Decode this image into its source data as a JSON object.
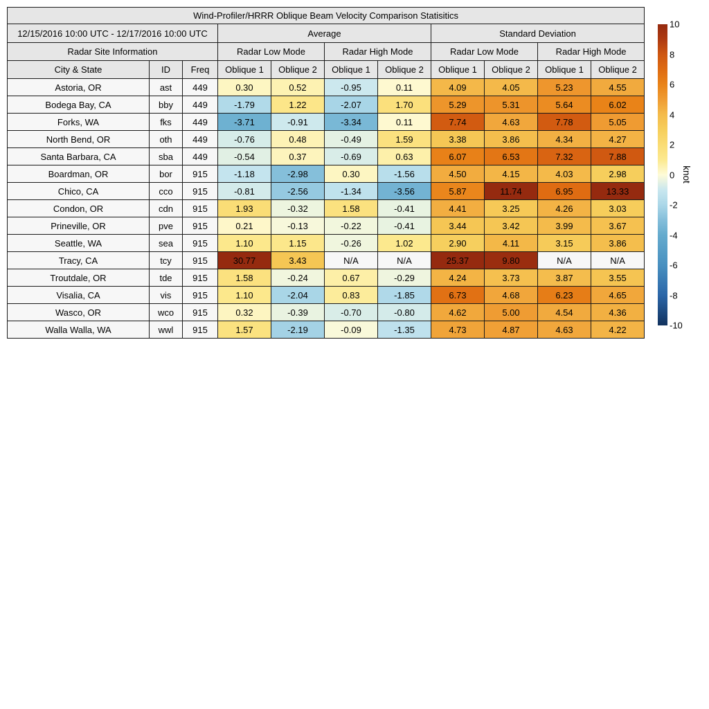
{
  "chart_data": {
    "type": "table",
    "title": "Wind-Profiler/HRRR Oblique Beam Velocity Comparison Statisitics",
    "date_range": "12/15/2016 10:00 UTC - 12/17/2016 10:00 UTC",
    "group_headers": [
      "Average",
      "Standard Deviation"
    ],
    "section_header": "Radar Site Information",
    "mode_headers": [
      "Radar Low Mode",
      "Radar High Mode",
      "Radar Low Mode",
      "Radar High Mode"
    ],
    "column_headers": [
      "City & State",
      "ID",
      "Freq",
      "Oblique 1",
      "Oblique 2",
      "Oblique 1",
      "Oblique 2",
      "Oblique 1",
      "Oblique 2",
      "Oblique 1",
      "Oblique 2"
    ],
    "rows": [
      {
        "city": "Astoria, OR",
        "id": "ast",
        "freq": "449",
        "values": [
          "0.30",
          "0.52",
          "-0.95",
          "0.11",
          "4.09",
          "4.05",
          "5.23",
          "4.55"
        ]
      },
      {
        "city": "Bodega Bay, CA",
        "id": "bby",
        "freq": "449",
        "values": [
          "-1.79",
          "1.22",
          "-2.07",
          "1.70",
          "5.29",
          "5.31",
          "5.64",
          "6.02"
        ]
      },
      {
        "city": "Forks, WA",
        "id": "fks",
        "freq": "449",
        "values": [
          "-3.71",
          "-0.91",
          "-3.34",
          "0.11",
          "7.74",
          "4.63",
          "7.78",
          "5.05"
        ]
      },
      {
        "city": "North Bend, OR",
        "id": "oth",
        "freq": "449",
        "values": [
          "-0.76",
          "0.48",
          "-0.49",
          "1.59",
          "3.38",
          "3.86",
          "4.34",
          "4.27"
        ]
      },
      {
        "city": "Santa Barbara, CA",
        "id": "sba",
        "freq": "449",
        "values": [
          "-0.54",
          "0.37",
          "-0.69",
          "0.63",
          "6.07",
          "6.53",
          "7.32",
          "7.88"
        ]
      },
      {
        "city": "Boardman, OR",
        "id": "bor",
        "freq": "915",
        "values": [
          "-1.18",
          "-2.98",
          "0.30",
          "-1.56",
          "4.50",
          "4.15",
          "4.03",
          "2.98"
        ]
      },
      {
        "city": "Chico, CA",
        "id": "cco",
        "freq": "915",
        "values": [
          "-0.81",
          "-2.56",
          "-1.34",
          "-3.56",
          "5.87",
          "11.74",
          "6.95",
          "13.33"
        ]
      },
      {
        "city": "Condon, OR",
        "id": "cdn",
        "freq": "915",
        "values": [
          "1.93",
          "-0.32",
          "1.58",
          "-0.41",
          "4.41",
          "3.25",
          "4.26",
          "3.03"
        ]
      },
      {
        "city": "Prineville, OR",
        "id": "pve",
        "freq": "915",
        "values": [
          "0.21",
          "-0.13",
          "-0.22",
          "-0.41",
          "3.44",
          "3.42",
          "3.99",
          "3.67"
        ]
      },
      {
        "city": "Seattle, WA",
        "id": "sea",
        "freq": "915",
        "values": [
          "1.10",
          "1.15",
          "-0.26",
          "1.02",
          "2.90",
          "4.11",
          "3.15",
          "3.86"
        ]
      },
      {
        "city": "Tracy, CA",
        "id": "tcy",
        "freq": "915",
        "values": [
          "30.77",
          "3.43",
          "N/A",
          "N/A",
          "25.37",
          "9.80",
          "N/A",
          "N/A"
        ]
      },
      {
        "city": "Troutdale, OR",
        "id": "tde",
        "freq": "915",
        "values": [
          "1.58",
          "-0.24",
          "0.67",
          "-0.29",
          "4.24",
          "3.73",
          "3.87",
          "3.55"
        ]
      },
      {
        "city": "Visalia, CA",
        "id": "vis",
        "freq": "915",
        "values": [
          "1.10",
          "-2.04",
          "0.83",
          "-1.85",
          "6.73",
          "4.68",
          "6.23",
          "4.65"
        ]
      },
      {
        "city": "Wasco, OR",
        "id": "wco",
        "freq": "915",
        "values": [
          "0.32",
          "-0.39",
          "-0.70",
          "-0.80",
          "4.62",
          "5.00",
          "4.54",
          "4.36"
        ]
      },
      {
        "city": "Walla Walla, WA",
        "id": "wwl",
        "freq": "915",
        "values": [
          "1.57",
          "-2.19",
          "-0.09",
          "-1.35",
          "4.73",
          "4.87",
          "4.63",
          "4.22"
        ]
      }
    ],
    "colorbar": {
      "label": "knot",
      "min": -10,
      "max": 10,
      "tick_labels": [
        "10",
        "8",
        "6",
        "4",
        "2",
        "0",
        "-2",
        "-4",
        "-6",
        "-8",
        "-10"
      ]
    },
    "colors": {
      "header_bg": "#E6E6E6",
      "label_bg": "#F7F7F7",
      "na_bg": "#F7F7F7",
      "border": "#1a1a1a",
      "stops": [
        {
          "v": -10,
          "c": "#12325E"
        },
        {
          "v": -8,
          "c": "#2B66A8"
        },
        {
          "v": -6,
          "c": "#4890C0"
        },
        {
          "v": -4,
          "c": "#65ABCE"
        },
        {
          "v": -3,
          "c": "#84BEDA"
        },
        {
          "v": -2,
          "c": "#ABD7E8"
        },
        {
          "v": -1,
          "c": "#C9E7EF"
        },
        {
          "v": 0,
          "c": "#FEFBD8"
        },
        {
          "v": 1,
          "c": "#FCE98F"
        },
        {
          "v": 2,
          "c": "#FADC74"
        },
        {
          "v": 3,
          "c": "#F6CE5B"
        },
        {
          "v": 4,
          "c": "#F4BB4B"
        },
        {
          "v": 5,
          "c": "#EF9C33"
        },
        {
          "v": 6,
          "c": "#E98318"
        },
        {
          "v": 7,
          "c": "#DE6B12"
        },
        {
          "v": 8,
          "c": "#CE5611"
        },
        {
          "v": 9,
          "c": "#AE3A11"
        },
        {
          "v": 10,
          "c": "#952A0F"
        }
      ]
    }
  }
}
